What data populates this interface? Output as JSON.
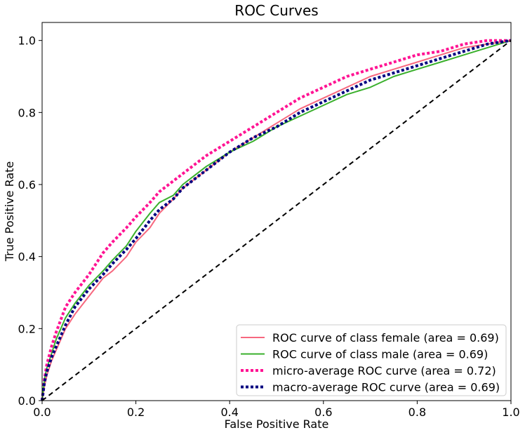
{
  "chart_data": {
    "type": "line",
    "title": "ROC Curves",
    "xlabel": "False Positive Rate",
    "ylabel": "True Positive Rate",
    "xlim": [
      0.0,
      1.0
    ],
    "ylim": [
      0.0,
      1.05
    ],
    "xticks": [
      0.0,
      0.2,
      0.4,
      0.6,
      0.8,
      1.0
    ],
    "yticks": [
      0.0,
      0.2,
      0.4,
      0.6,
      0.8,
      1.0
    ],
    "xtick_labels": [
      "0.0",
      "0.2",
      "0.4",
      "0.6",
      "0.8",
      "1.0"
    ],
    "ytick_labels": [
      "0.0",
      "0.2",
      "0.4",
      "0.6",
      "0.8",
      "1.0"
    ],
    "grid": false,
    "legend_position": "lower-right",
    "series": [
      {
        "name": "ROC curve of class female (area = 0.69)",
        "color": "#f7687f",
        "style": "solid",
        "x": [
          0.0,
          0.005,
          0.01,
          0.02,
          0.03,
          0.05,
          0.07,
          0.1,
          0.13,
          0.15,
          0.18,
          0.2,
          0.23,
          0.25,
          0.28,
          0.3,
          0.35,
          0.4,
          0.45,
          0.5,
          0.55,
          0.6,
          0.65,
          0.7,
          0.75,
          0.8,
          0.85,
          0.9,
          0.95,
          1.0
        ],
        "y": [
          0.0,
          0.04,
          0.07,
          0.11,
          0.14,
          0.2,
          0.24,
          0.29,
          0.34,
          0.36,
          0.4,
          0.44,
          0.48,
          0.52,
          0.56,
          0.59,
          0.64,
          0.69,
          0.73,
          0.77,
          0.81,
          0.84,
          0.87,
          0.9,
          0.92,
          0.94,
          0.96,
          0.98,
          0.99,
          1.0
        ]
      },
      {
        "name": "ROC curve of class male (area = 0.69)",
        "color": "#3ab02c",
        "style": "solid",
        "x": [
          0.0,
          0.005,
          0.01,
          0.02,
          0.03,
          0.05,
          0.07,
          0.1,
          0.13,
          0.15,
          0.18,
          0.2,
          0.23,
          0.25,
          0.28,
          0.3,
          0.35,
          0.4,
          0.45,
          0.5,
          0.55,
          0.6,
          0.65,
          0.7,
          0.75,
          0.8,
          0.85,
          0.9,
          0.95,
          1.0
        ],
        "y": [
          0.0,
          0.06,
          0.09,
          0.13,
          0.17,
          0.23,
          0.27,
          0.32,
          0.36,
          0.39,
          0.43,
          0.47,
          0.52,
          0.55,
          0.57,
          0.6,
          0.65,
          0.69,
          0.72,
          0.76,
          0.79,
          0.82,
          0.85,
          0.87,
          0.9,
          0.92,
          0.94,
          0.96,
          0.98,
          1.0
        ]
      },
      {
        "name": "micro-average ROC curve (area = 0.72)",
        "color": "#ff1493",
        "style": "dotted",
        "x": [
          0.0,
          0.005,
          0.01,
          0.02,
          0.03,
          0.05,
          0.07,
          0.1,
          0.13,
          0.15,
          0.18,
          0.2,
          0.23,
          0.25,
          0.28,
          0.3,
          0.35,
          0.4,
          0.45,
          0.5,
          0.55,
          0.6,
          0.65,
          0.7,
          0.75,
          0.8,
          0.85,
          0.9,
          0.95,
          1.0
        ],
        "y": [
          0.0,
          0.06,
          0.1,
          0.15,
          0.19,
          0.26,
          0.3,
          0.35,
          0.41,
          0.44,
          0.48,
          0.51,
          0.55,
          0.58,
          0.61,
          0.63,
          0.68,
          0.72,
          0.76,
          0.8,
          0.84,
          0.87,
          0.9,
          0.92,
          0.94,
          0.96,
          0.97,
          0.99,
          1.0,
          1.0
        ]
      },
      {
        "name": "macro-average ROC curve (area = 0.69)",
        "color": "#000080",
        "style": "dotted",
        "x": [
          0.0,
          0.005,
          0.01,
          0.02,
          0.03,
          0.05,
          0.07,
          0.1,
          0.13,
          0.15,
          0.18,
          0.2,
          0.23,
          0.25,
          0.28,
          0.3,
          0.35,
          0.4,
          0.45,
          0.5,
          0.55,
          0.6,
          0.65,
          0.7,
          0.75,
          0.8,
          0.85,
          0.9,
          0.95,
          1.0
        ],
        "y": [
          0.0,
          0.05,
          0.08,
          0.12,
          0.15,
          0.21,
          0.26,
          0.31,
          0.35,
          0.38,
          0.42,
          0.45,
          0.5,
          0.53,
          0.56,
          0.59,
          0.64,
          0.69,
          0.73,
          0.76,
          0.8,
          0.83,
          0.86,
          0.89,
          0.91,
          0.93,
          0.95,
          0.97,
          0.99,
          1.0
        ]
      },
      {
        "name": "",
        "color": "#000000",
        "style": "dashed",
        "x": [
          0.0,
          1.0
        ],
        "y": [
          0.0,
          1.0
        ]
      }
    ]
  }
}
